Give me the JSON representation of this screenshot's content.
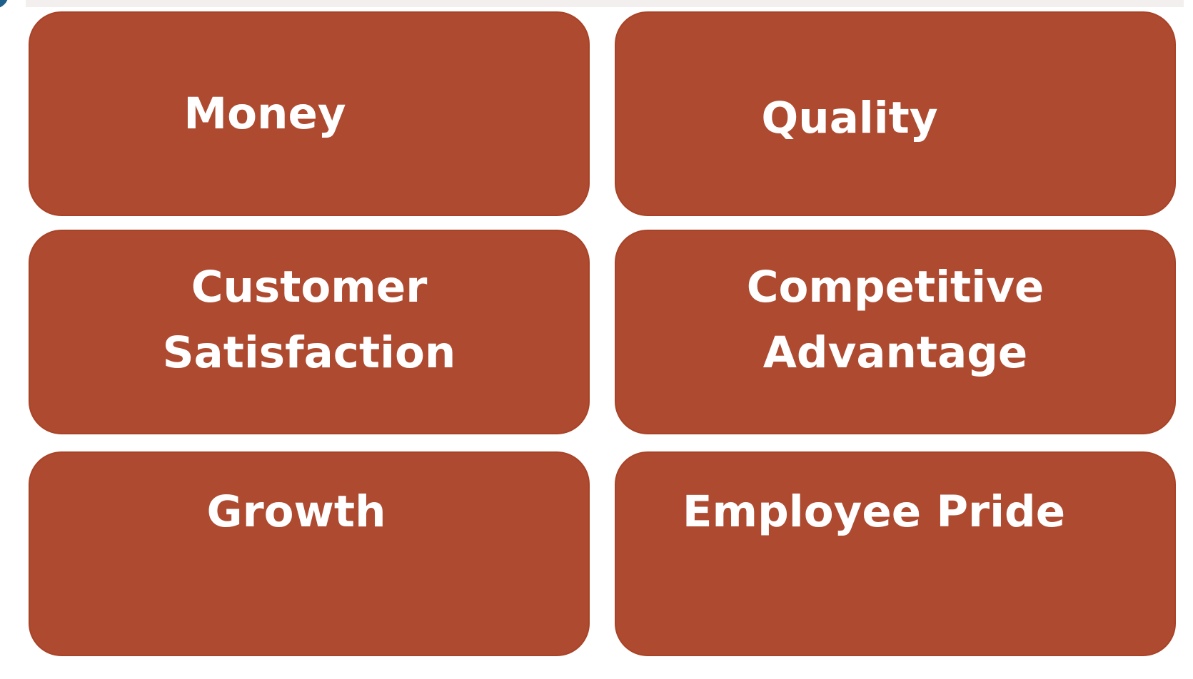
{
  "colors": {
    "box_fill": "#ae4a30",
    "box_border": "#a94327",
    "label_text": "#ffffff",
    "background": "#ffffff"
  },
  "boxes": [
    {
      "id": "money",
      "lines": [
        "Money"
      ]
    },
    {
      "id": "quality",
      "lines": [
        "Quality"
      ]
    },
    {
      "id": "customer-satisfaction",
      "lines": [
        "Customer",
        "Satisfaction"
      ]
    },
    {
      "id": "competitive-advantage",
      "lines": [
        "Competitive",
        "Advantage"
      ]
    },
    {
      "id": "growth",
      "lines": [
        "Growth"
      ]
    },
    {
      "id": "employee-pride",
      "lines": [
        "Employee Pride"
      ]
    }
  ]
}
